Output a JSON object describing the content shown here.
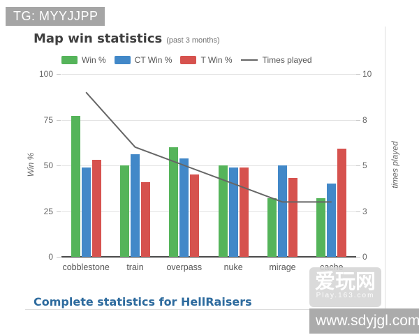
{
  "watermarks": {
    "tg_badge": "TG: MYYJJPP",
    "aiwan_title": "爱玩网",
    "aiwan_subtitle": "Play.163.com",
    "site_url": "www.sdyjgl.com"
  },
  "footer": {
    "link_label": "Complete statistics for HellRaisers"
  },
  "chart_data": {
    "type": "bar",
    "title": "Map win statistics",
    "subtitle": "(past 3 months)",
    "categories": [
      "cobblestone",
      "train",
      "overpass",
      "nuke",
      "mirage",
      "cache"
    ],
    "series": [
      {
        "name": "Win %",
        "type": "bar",
        "color": "#55b45a",
        "axis": "left",
        "values": [
          77,
          50,
          60,
          50,
          32,
          32
        ]
      },
      {
        "name": "CT Win %",
        "type": "bar",
        "color": "#4288c8",
        "axis": "left",
        "values": [
          49,
          56,
          54,
          49,
          50,
          40
        ]
      },
      {
        "name": "T Win %",
        "type": "bar",
        "color": "#d6524e",
        "axis": "left",
        "values": [
          53,
          41,
          45,
          49,
          43,
          59
        ]
      },
      {
        "name": "Times played",
        "type": "line",
        "color": "#666666",
        "axis": "right",
        "values": [
          9,
          6,
          5,
          4,
          3,
          3
        ]
      }
    ],
    "y_left": {
      "label": "Win %",
      "ticks": [
        "100",
        "75",
        "50",
        "25",
        "0"
      ],
      "range": [
        0,
        100
      ]
    },
    "y_right": {
      "label": "times played",
      "ticks": [
        "10",
        "8",
        "5",
        "3",
        "0"
      ],
      "range": [
        0,
        10
      ]
    },
    "legend_position": "top",
    "grid": true
  }
}
